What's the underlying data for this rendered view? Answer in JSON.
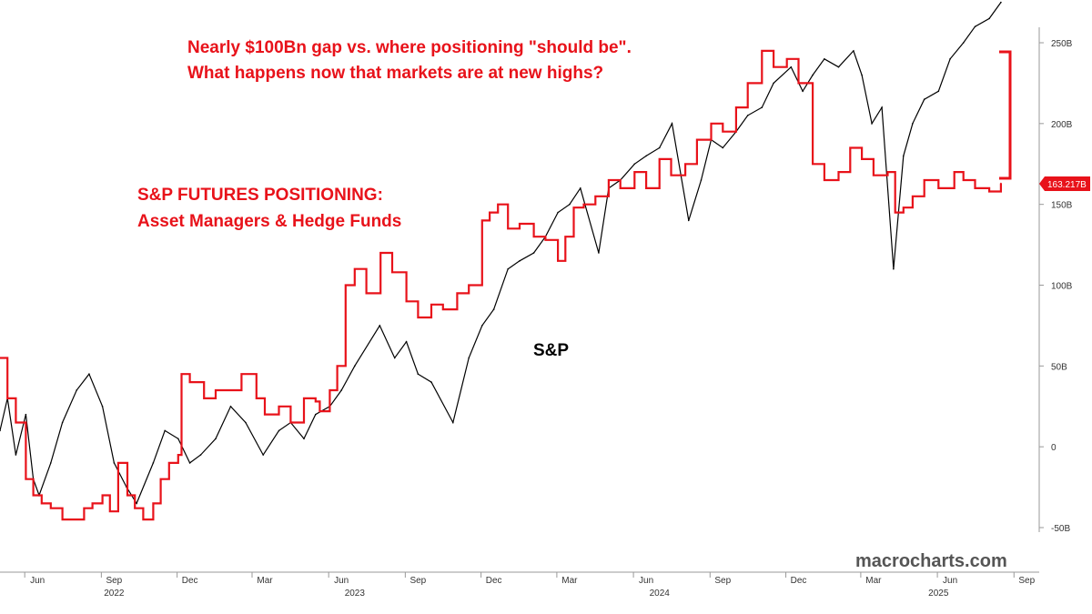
{
  "chart_data": {
    "type": "line",
    "annotations": {
      "headline_1": "Nearly $100Bn gap vs. where positioning \"should be\".",
      "headline_2": "What happens now that markets are at new highs?",
      "series_label_1": "S&P FUTURES POSITIONING:",
      "series_label_2": "Asset Managers & Hedge Funds",
      "sp_label": "S&P",
      "last_value": "163.217B",
      "watermark": "macrocharts.com"
    },
    "y_axis": {
      "ticks": [
        -50,
        0,
        50,
        100,
        150,
        200,
        250
      ],
      "tick_labels": [
        "-50B",
        "0",
        "50B",
        "100B",
        "150B",
        "200B",
        "250B"
      ],
      "range": [
        -50,
        250
      ],
      "position": "right"
    },
    "x_axis": {
      "month_labels": [
        "Jun",
        "Sep",
        "Dec",
        "Mar",
        "Jun",
        "Sep",
        "Dec",
        "Mar",
        "Jun",
        "Sep",
        "Dec",
        "Mar",
        "Jun",
        "Sep"
      ],
      "month_dates": [
        "2022-06-15",
        "2022-09-15",
        "2022-12-15",
        "2023-03-15",
        "2023-06-15",
        "2023-09-15",
        "2023-12-15",
        "2024-03-15",
        "2024-06-15",
        "2024-09-15",
        "2024-12-15",
        "2025-03-15",
        "2025-06-15",
        "2025-09-15"
      ],
      "year_labels": [
        "2022",
        "2023",
        "2024",
        "2025"
      ],
      "year_dates": [
        "2022-09-15",
        "2023-07-01",
        "2024-07-01",
        "2025-06-01"
      ],
      "range": [
        "2022-05-01",
        "2025-09-30"
      ]
    },
    "series": [
      {
        "name": "S&P FUTURES POSITIONING: Asset Managers & Hedge Funds",
        "color": "#e8121a",
        "dates": [
          "2022-05-01",
          "2022-05-10",
          "2022-05-20",
          "2022-06-01",
          "2022-06-10",
          "2022-06-20",
          "2022-07-01",
          "2022-07-15",
          "2022-08-01",
          "2022-08-10",
          "2022-08-20",
          "2022-09-01",
          "2022-09-10",
          "2022-09-20",
          "2022-10-01",
          "2022-10-10",
          "2022-10-20",
          "2022-11-01",
          "2022-11-10",
          "2022-11-20",
          "2022-12-01",
          "2022-12-05",
          "2022-12-15",
          "2023-01-01",
          "2023-01-15",
          "2023-02-01",
          "2023-02-15",
          "2023-03-01",
          "2023-03-05",
          "2023-03-15",
          "2023-04-01",
          "2023-04-15",
          "2023-05-01",
          "2023-05-15",
          "2023-05-20",
          "2023-06-01",
          "2023-06-10",
          "2023-06-20",
          "2023-07-01",
          "2023-07-15",
          "2023-08-01",
          "2023-08-15",
          "2023-09-01",
          "2023-09-15",
          "2023-10-01",
          "2023-10-15",
          "2023-11-01",
          "2023-11-15",
          "2023-12-01",
          "2023-12-10",
          "2023-12-20",
          "2024-01-01",
          "2024-01-15",
          "2024-02-01",
          "2024-02-15",
          "2024-03-01",
          "2024-03-10",
          "2024-03-20",
          "2024-04-01",
          "2024-04-15",
          "2024-05-01",
          "2024-05-15",
          "2024-06-01",
          "2024-06-15",
          "2024-07-01",
          "2024-07-15",
          "2024-08-01",
          "2024-08-15",
          "2024-09-01",
          "2024-09-15",
          "2024-10-01",
          "2024-10-15",
          "2024-11-01",
          "2024-11-15",
          "2024-12-01",
          "2024-12-15",
          "2025-01-01",
          "2025-01-15",
          "2025-02-01",
          "2025-02-15",
          "2025-03-01",
          "2025-03-15",
          "2025-04-01",
          "2025-04-10",
          "2025-04-20",
          "2025-05-01",
          "2025-05-15",
          "2025-06-01",
          "2025-06-10",
          "2025-06-20",
          "2025-07-01",
          "2025-07-15",
          "2025-08-01",
          "2025-08-15"
        ],
        "values": [
          55,
          30,
          15,
          -20,
          -30,
          -35,
          -38,
          -45,
          -45,
          -38,
          -35,
          -30,
          -40,
          -10,
          -30,
          -38,
          -45,
          -35,
          -20,
          -10,
          -5,
          45,
          40,
          30,
          35,
          35,
          45,
          45,
          30,
          20,
          25,
          15,
          30,
          28,
          22,
          35,
          50,
          100,
          110,
          95,
          120,
          108,
          90,
          80,
          88,
          85,
          95,
          100,
          140,
          145,
          150,
          135,
          138,
          130,
          128,
          115,
          130,
          148,
          150,
          155,
          165,
          160,
          170,
          160,
          178,
          168,
          175,
          190,
          200,
          195,
          210,
          225,
          245,
          235,
          240,
          225,
          175,
          165,
          170,
          185,
          178,
          168,
          170,
          145,
          148,
          155,
          165,
          160,
          160,
          170,
          165,
          160,
          158,
          163
        ]
      },
      {
        "name": "S&P",
        "color": "#000000",
        "dates": [
          "2022-05-01",
          "2022-05-10",
          "2022-05-20",
          "2022-06-01",
          "2022-06-10",
          "2022-06-17",
          "2022-07-01",
          "2022-07-15",
          "2022-08-01",
          "2022-08-16",
          "2022-09-01",
          "2022-09-15",
          "2022-09-30",
          "2022-10-12",
          "2022-11-01",
          "2022-11-15",
          "2022-12-01",
          "2022-12-15",
          "2022-12-28",
          "2023-01-15",
          "2023-02-02",
          "2023-02-20",
          "2023-03-13",
          "2023-04-01",
          "2023-04-15",
          "2023-05-01",
          "2023-05-15",
          "2023-06-01",
          "2023-06-15",
          "2023-07-01",
          "2023-07-31",
          "2023-08-18",
          "2023-09-01",
          "2023-09-15",
          "2023-10-01",
          "2023-10-27",
          "2023-11-15",
          "2023-12-01",
          "2023-12-15",
          "2024-01-01",
          "2024-01-15",
          "2024-02-01",
          "2024-02-15",
          "2024-03-01",
          "2024-03-15",
          "2024-03-28",
          "2024-04-19",
          "2024-05-01",
          "2024-05-15",
          "2024-06-01",
          "2024-06-15",
          "2024-07-01",
          "2024-07-16",
          "2024-08-05",
          "2024-08-20",
          "2024-09-01",
          "2024-09-15",
          "2024-10-01",
          "2024-10-15",
          "2024-11-01",
          "2024-11-15",
          "2024-12-06",
          "2024-12-20",
          "2025-01-01",
          "2025-01-15",
          "2025-02-01",
          "2025-02-19",
          "2025-03-01",
          "2025-03-13",
          "2025-03-25",
          "2025-04-08",
          "2025-04-20",
          "2025-05-01",
          "2025-05-15",
          "2025-06-01",
          "2025-06-15",
          "2025-07-01",
          "2025-07-15",
          "2025-08-01",
          "2025-08-15"
        ],
        "values": [
          10,
          30,
          -5,
          20,
          -20,
          -30,
          -10,
          15,
          35,
          45,
          25,
          -10,
          -25,
          -35,
          -10,
          10,
          5,
          -10,
          -5,
          5,
          25,
          15,
          -5,
          10,
          15,
          5,
          20,
          25,
          35,
          50,
          75,
          55,
          65,
          45,
          40,
          15,
          55,
          75,
          85,
          110,
          115,
          120,
          130,
          145,
          150,
          160,
          120,
          160,
          165,
          175,
          180,
          185,
          200,
          140,
          165,
          190,
          185,
          195,
          205,
          210,
          225,
          235,
          220,
          230,
          240,
          235,
          245,
          230,
          200,
          210,
          110,
          180,
          200,
          215,
          220,
          240,
          250,
          260,
          265,
          275
        ]
      }
    ]
  }
}
